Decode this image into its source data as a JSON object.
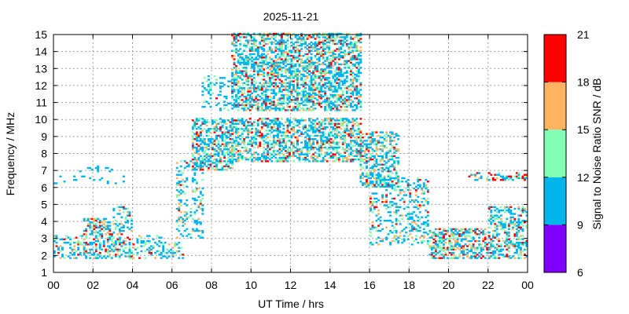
{
  "chart_data": {
    "type": "heatmap",
    "title": "2025-11-21",
    "xlabel": "UT Time / hrs",
    "ylabel": "Frequency / MHz",
    "colorbar_label": "Signal to Noise Ratio SNR / dB",
    "xlim": [
      0,
      24
    ],
    "ylim": [
      1,
      15
    ],
    "x_ticks": [
      "00",
      "02",
      "04",
      "06",
      "08",
      "10",
      "12",
      "14",
      "16",
      "18",
      "20",
      "22",
      "00"
    ],
    "y_ticks": [
      "1",
      "2",
      "3",
      "4",
      "5",
      "6",
      "7",
      "8",
      "9",
      "10",
      "11",
      "12",
      "13",
      "14",
      "15"
    ],
    "grid": true,
    "colorbar": {
      "ticks": [
        "6",
        "9",
        "12",
        "15",
        "18",
        "21"
      ],
      "bands": [
        {
          "range": [
            6,
            9
          ],
          "color": "#7f00ff"
        },
        {
          "range": [
            9,
            12
          ],
          "color": "#00b5eb"
        },
        {
          "range": [
            12,
            15
          ],
          "color": "#80ffb4"
        },
        {
          "range": [
            15,
            18
          ],
          "color": "#ffb360"
        },
        {
          "range": [
            18,
            21
          ],
          "color": "#ff0000"
        }
      ]
    },
    "regions": [
      {
        "t": [
          0.0,
          1.5
        ],
        "f": [
          1.8,
          3.2
        ],
        "density": 0.35,
        "snr": [
          9,
          21
        ],
        "red": 0.12
      },
      {
        "t": [
          1.5,
          3.0
        ],
        "f": [
          1.8,
          4.2
        ],
        "density": 0.45,
        "snr": [
          9,
          21
        ],
        "red": 0.15
      },
      {
        "t": [
          3.0,
          4.0
        ],
        "f": [
          1.8,
          4.8
        ],
        "density": 0.35,
        "snr": [
          9,
          20
        ],
        "red": 0.08
      },
      {
        "t": [
          4.0,
          5.5
        ],
        "f": [
          1.8,
          3.2
        ],
        "density": 0.3,
        "snr": [
          9,
          16
        ],
        "red": 0.03
      },
      {
        "t": [
          5.5,
          6.5
        ],
        "f": [
          1.8,
          2.8
        ],
        "density": 0.25,
        "snr": [
          9,
          18
        ],
        "red": 0.05
      },
      {
        "t": [
          0.0,
          4.0
        ],
        "f": [
          6.2,
          6.6
        ],
        "density": 0.1,
        "snr": [
          9,
          12
        ],
        "red": 0.0
      },
      {
        "t": [
          1.0,
          3.0
        ],
        "f": [
          6.9,
          7.2
        ],
        "density": 0.15,
        "snr": [
          9,
          12
        ],
        "red": 0.0
      },
      {
        "t": [
          6.2,
          7.5
        ],
        "f": [
          3.0,
          7.5
        ],
        "density": 0.22,
        "snr": [
          9,
          18
        ],
        "red": 0.05
      },
      {
        "t": [
          7.0,
          9.0
        ],
        "f": [
          7.0,
          10.0
        ],
        "density": 0.55,
        "snr": [
          9,
          21
        ],
        "red": 0.1
      },
      {
        "t": [
          7.5,
          9.0
        ],
        "f": [
          10.5,
          12.5
        ],
        "density": 0.2,
        "snr": [
          9,
          14
        ],
        "red": 0.02
      },
      {
        "t": [
          9.0,
          15.5
        ],
        "f": [
          7.5,
          10.0
        ],
        "density": 0.5,
        "snr": [
          9,
          21
        ],
        "red": 0.1
      },
      {
        "t": [
          9.0,
          15.5
        ],
        "f": [
          10.5,
          15.0
        ],
        "density": 0.55,
        "snr": [
          9,
          21
        ],
        "red": 0.12
      },
      {
        "t": [
          15.5,
          17.5
        ],
        "f": [
          6.0,
          9.2
        ],
        "density": 0.45,
        "snr": [
          9,
          21
        ],
        "red": 0.1
      },
      {
        "t": [
          16.0,
          19.0
        ],
        "f": [
          2.6,
          6.5
        ],
        "density": 0.28,
        "snr": [
          9,
          20
        ],
        "red": 0.06
      },
      {
        "t": [
          19.0,
          22.0
        ],
        "f": [
          1.8,
          3.6
        ],
        "density": 0.5,
        "snr": [
          9,
          21
        ],
        "red": 0.15
      },
      {
        "t": [
          22.0,
          24.0
        ],
        "f": [
          1.8,
          4.8
        ],
        "density": 0.45,
        "snr": [
          9,
          21
        ],
        "red": 0.12
      },
      {
        "t": [
          21.0,
          24.0
        ],
        "f": [
          6.4,
          6.8
        ],
        "density": 0.3,
        "snr": [
          9,
          21
        ],
        "red": 0.3
      }
    ]
  }
}
